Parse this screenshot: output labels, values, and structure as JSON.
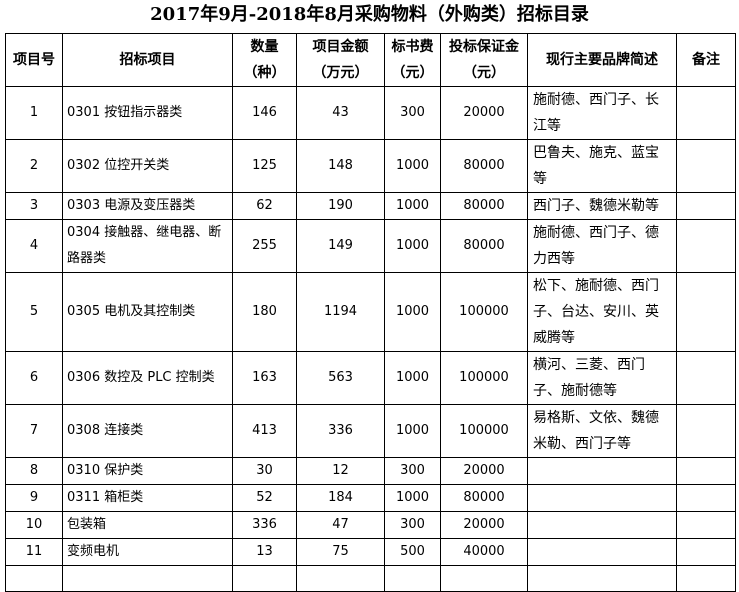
{
  "title": "2017年9月-2018年8月采购物料（外购类）招标目录",
  "headers": [
    {
      "l1": "项目号",
      "l2": ""
    },
    {
      "l1": "招标项目",
      "l2": ""
    },
    {
      "l1": "数量",
      "l2": "（种）"
    },
    {
      "l1": "项目金额",
      "l2": "（万元）"
    },
    {
      "l1": "标书费",
      "l2": "（元）"
    },
    {
      "l1": "投标保证金",
      "l2": "（元）"
    },
    {
      "l1": "现行主要品牌简述",
      "l2": ""
    },
    {
      "l1": "备注",
      "l2": ""
    }
  ],
  "rows": [
    {
      "no": "1",
      "item": "0301 按钮指示器类",
      "qty": "146",
      "amount": "43",
      "fee": "300",
      "deposit": "20000",
      "brands": "施耐德、西门子、长江等",
      "note": ""
    },
    {
      "no": "2",
      "item": "0302 位控开关类",
      "qty": "125",
      "amount": "148",
      "fee": "1000",
      "deposit": "80000",
      "brands": "巴鲁夫、施克、蓝宝等",
      "note": ""
    },
    {
      "no": "3",
      "item": "0303 电源及变压器类",
      "qty": "62",
      "amount": "190",
      "fee": "1000",
      "deposit": "80000",
      "brands": "西门子、魏德米勒等",
      "note": ""
    },
    {
      "no": "4",
      "item": "0304 接触器、继电器、断路器类",
      "qty": "255",
      "amount": "149",
      "fee": "1000",
      "deposit": "80000",
      "brands": "施耐德、西门子、德力西等",
      "note": ""
    },
    {
      "no": "5",
      "item": "0305 电机及其控制类",
      "qty": "180",
      "amount": "1194",
      "fee": "1000",
      "deposit": "100000",
      "brands": "松下、施耐德、西门子、台达、安川、英威腾等",
      "note": ""
    },
    {
      "no": "6",
      "item": "0306 数控及 PLC 控制类",
      "qty": "163",
      "amount": "563",
      "fee": "1000",
      "deposit": "100000",
      "brands": "横河、三菱、西门子、施耐德等",
      "note": ""
    },
    {
      "no": "7",
      "item": "0308 连接类",
      "qty": "413",
      "amount": "336",
      "fee": "1000",
      "deposit": "100000",
      "brands": "易格斯、文依、魏德米勒、西门子等",
      "note": ""
    },
    {
      "no": "8",
      "item": "0310 保护类",
      "qty": "30",
      "amount": "12",
      "fee": "300",
      "deposit": "20000",
      "brands": "",
      "note": ""
    },
    {
      "no": "9",
      "item": "0311 箱柜类",
      "qty": "52",
      "amount": "184",
      "fee": "1000",
      "deposit": "80000",
      "brands": "",
      "note": ""
    },
    {
      "no": "10",
      "item": "包装箱",
      "qty": "336",
      "amount": "47",
      "fee": "300",
      "deposit": "20000",
      "brands": "",
      "note": ""
    },
    {
      "no": "11",
      "item": "变频电机",
      "qty": "13",
      "amount": "75",
      "fee": "500",
      "deposit": "40000",
      "brands": "",
      "note": ""
    }
  ]
}
